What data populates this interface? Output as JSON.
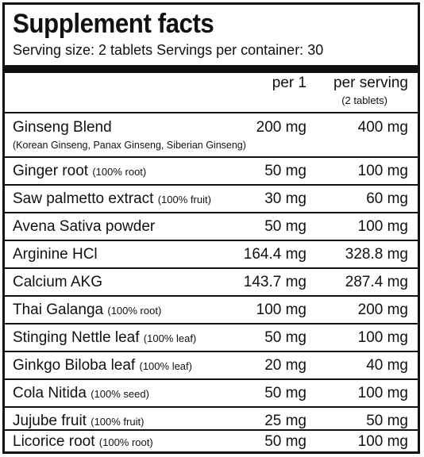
{
  "title": "Supplement facts",
  "serving_line": "Serving size: 2 tablets Servings per container: 30",
  "headers": {
    "per_one": "per 1",
    "per_serving": "per serving",
    "per_serving_note": "(2 tablets)"
  },
  "rows": [
    {
      "name": "Ginseng Blend",
      "note": "",
      "sub": "(Korean Ginseng, Panax Ginseng, Siberian Ginseng)",
      "per_one": "200 mg",
      "per_serving": "400  mg"
    },
    {
      "name": "Ginger root",
      "note": "(100% root)",
      "sub": "",
      "per_one": "50 mg",
      "per_serving": "100  mg"
    },
    {
      "name": "Saw palmetto extract",
      "note": "(100% fruit)",
      "sub": "",
      "per_one": "30 mg",
      "per_serving": "60  mg"
    },
    {
      "name": "Avena Sativa powder",
      "note": "",
      "sub": "",
      "per_one": "50 mg",
      "per_serving": "100  mg"
    },
    {
      "name": "Arginine HCl",
      "note": "",
      "sub": "",
      "per_one": "164.4 mg",
      "per_serving": "328.8  mg"
    },
    {
      "name": "Calcium AKG",
      "note": "",
      "sub": "",
      "per_one": "143.7 mg",
      "per_serving": "287.4  mg"
    },
    {
      "name": "Thai Galanga",
      "note": "(100% root)",
      "sub": "",
      "per_one": "100 mg",
      "per_serving": "200  mg"
    },
    {
      "name": "Stinging Nettle leaf",
      "note": "(100% leaf)",
      "sub": "",
      "per_one": "50 mg",
      "per_serving": "100  mg"
    },
    {
      "name": "Ginkgo Biloba leaf",
      "note": "(100% leaf)",
      "sub": "",
      "per_one": "20 mg",
      "per_serving": "40  mg"
    },
    {
      "name": "Cola Nitida",
      "note": "(100% seed)",
      "sub": "",
      "per_one": "50 mg",
      "per_serving": "100  mg"
    },
    {
      "name": "Jujube fruit",
      "note": "(100% fruit)",
      "sub": "",
      "per_one": "25 mg",
      "per_serving": "50  mg"
    },
    {
      "name": "Licorice root",
      "note": "(100% root)",
      "sub": "",
      "per_one": "50 mg",
      "per_serving": "100  mg"
    }
  ]
}
